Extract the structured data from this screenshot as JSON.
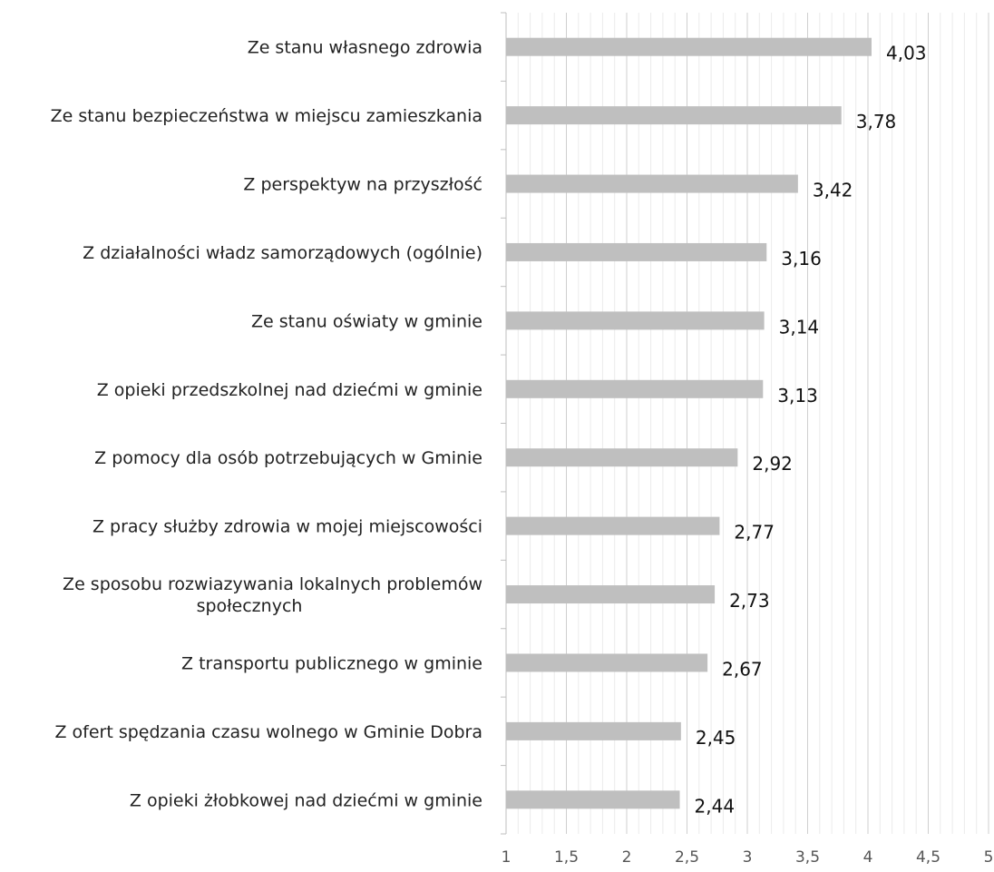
{
  "chart_data": {
    "type": "bar",
    "orientation": "horizontal",
    "title": "",
    "xlabel": "",
    "ylabel": "",
    "xlim": [
      1,
      5
    ],
    "x_ticks": [
      "1",
      "1,5",
      "2",
      "2,5",
      "3",
      "3,5",
      "4",
      "4,5",
      "5"
    ],
    "grid": true,
    "bar_color": "#bfbfbf",
    "categories": [
      [
        "Ze stanu własnego zdrowia"
      ],
      [
        "Ze stanu bezpieczeństwa w miejscu zamieszkania"
      ],
      [
        "Z perspektyw na przyszłość"
      ],
      [
        "Z działalności władz samorządowych (ogólnie)"
      ],
      [
        "Ze stanu oświaty w gminie"
      ],
      [
        "Z opieki przedszkolnej nad dziećmi w gminie"
      ],
      [
        "Z pomocy dla osób potrzebujących w Gminie"
      ],
      [
        "Z pracy służby zdrowia w mojej miejscowości"
      ],
      [
        "Ze sposobu rozwiazywania lokalnych problemów",
        "społecznych"
      ],
      [
        "Z transportu publicznego w gminie"
      ],
      [
        "Z ofert spędzania czasu wolnego w Gminie Dobra"
      ],
      [
        "Z opieki żłobkowej nad dziećmi w gminie"
      ]
    ],
    "values": [
      4.03,
      3.78,
      3.42,
      3.16,
      3.14,
      3.13,
      2.92,
      2.77,
      2.73,
      2.67,
      2.45,
      2.44
    ],
    "value_labels": [
      "4,03",
      "3,78",
      "3,42",
      "3,16",
      "3,14",
      "3,13",
      "2,92",
      "2,77",
      "2,73",
      "2,67",
      "2,45",
      "2,44"
    ]
  }
}
